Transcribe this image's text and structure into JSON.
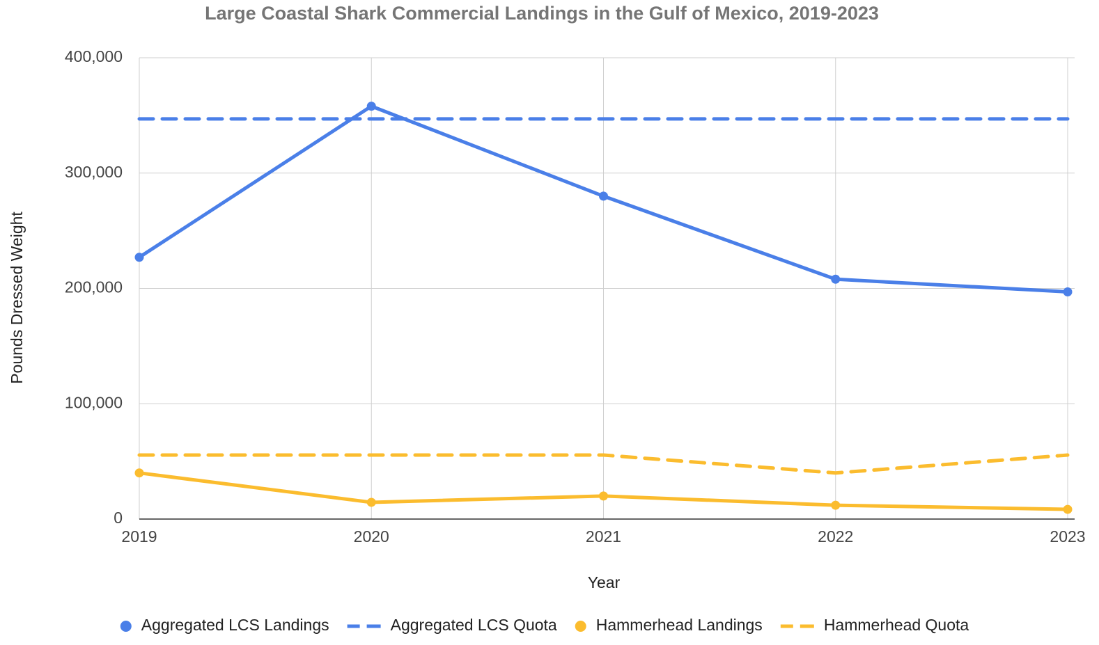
{
  "chart_data": {
    "type": "line",
    "title": "Large Coastal Shark Commercial Landings in the Gulf of Mexico, 2019-2023",
    "xlabel": "Year",
    "ylabel": "Pounds Dressed Weight",
    "categories": [
      "2019",
      "2020",
      "2021",
      "2022",
      "2023"
    ],
    "series": [
      {
        "name": "Aggregated LCS Landings",
        "color": "#4a7fe8",
        "line_style": "solid",
        "markers": true,
        "values": [
          227000,
          358000,
          280000,
          208000,
          197000
        ]
      },
      {
        "name": "Aggregated LCS Quota",
        "color": "#4a7fe8",
        "line_style": "dashed",
        "markers": false,
        "values": [
          347000,
          347000,
          347000,
          347000,
          347000
        ]
      },
      {
        "name": "Hammerhead Landings",
        "color": "#fbbc2e",
        "line_style": "solid",
        "markers": true,
        "values": [
          40000,
          14500,
          20000,
          12000,
          8400
        ]
      },
      {
        "name": "Hammerhead Quota",
        "color": "#fbbc2e",
        "line_style": "dashed",
        "markers": false,
        "values": [
          55500,
          55500,
          55500,
          40000,
          55500
        ]
      }
    ],
    "ylim": [
      0,
      400000
    ],
    "yticks": [
      0,
      {
        "value": 100000,
        "label": "100,000"
      },
      {
        "value": 200000,
        "label": "200,000"
      },
      {
        "value": 300000,
        "label": "300,000"
      },
      {
        "value": 400000,
        "label": "400,000"
      }
    ],
    "grid": true,
    "legend": "bottom"
  }
}
